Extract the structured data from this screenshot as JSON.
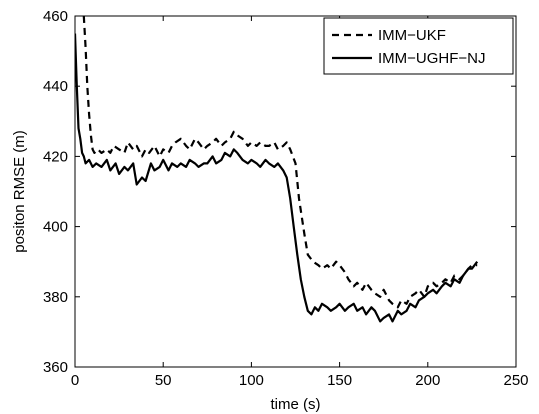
{
  "chart_data": {
    "type": "line",
    "title": "",
    "xlabel": "time (s)",
    "ylabel": "positon RMSE (m)",
    "xlim": [
      0,
      250
    ],
    "ylim": [
      360,
      460
    ],
    "xticks": [
      0,
      50,
      100,
      150,
      200,
      250
    ],
    "yticks": [
      360,
      380,
      400,
      420,
      440,
      460
    ],
    "grid": false,
    "legend_position": "top-right",
    "series": [
      {
        "name": "IMM−UKF",
        "line_style": "dashed",
        "color": "#000000",
        "x": [
          5,
          6,
          7,
          8,
          9,
          10,
          11,
          13,
          15,
          18,
          20,
          22,
          25,
          28,
          30,
          33,
          35,
          38,
          40,
          42,
          45,
          48,
          50,
          53,
          55,
          57,
          60,
          63,
          65,
          68,
          70,
          73,
          75,
          78,
          80,
          83,
          85,
          88,
          90,
          92,
          95,
          98,
          100,
          103,
          105,
          108,
          110,
          113,
          115,
          118,
          120,
          122,
          125,
          127,
          130,
          132,
          135,
          138,
          140,
          143,
          145,
          148,
          150,
          153,
          155,
          158,
          160,
          163,
          165,
          168,
          170,
          173,
          175,
          178,
          180,
          183,
          185,
          188,
          190,
          193,
          195,
          198,
          200,
          203,
          205,
          208,
          210,
          213,
          215,
          218,
          220,
          223,
          225,
          228
        ],
        "y": [
          460,
          451,
          440,
          432,
          426,
          422,
          421,
          422,
          421,
          422,
          421,
          423,
          422,
          421,
          424,
          422,
          423,
          420,
          422,
          421,
          423,
          420,
          422,
          421,
          423,
          424,
          425,
          423,
          422,
          425,
          424,
          422,
          423,
          424,
          425,
          423,
          424,
          425,
          427,
          426,
          425,
          423,
          424,
          423,
          424,
          423,
          423,
          424,
          422,
          423,
          424,
          422,
          418,
          408,
          398,
          392,
          390,
          389,
          388,
          389,
          388,
          390,
          389,
          387,
          385,
          383,
          384,
          382,
          384,
          382,
          381,
          380,
          382,
          379,
          378,
          377,
          379,
          378,
          380,
          381,
          382,
          380,
          383,
          384,
          383,
          384,
          385,
          384,
          386,
          385,
          386,
          388,
          389,
          389
        ]
      },
      {
        "name": "IMM−UGHF−NJ",
        "line_style": "solid",
        "color": "#000000",
        "x": [
          0,
          1,
          2,
          3,
          4,
          5,
          6,
          8,
          10,
          12,
          15,
          18,
          20,
          23,
          25,
          28,
          30,
          33,
          35,
          38,
          40,
          43,
          45,
          48,
          50,
          53,
          55,
          58,
          60,
          63,
          65,
          68,
          70,
          73,
          75,
          78,
          80,
          83,
          85,
          88,
          90,
          92,
          95,
          98,
          100,
          103,
          105,
          108,
          110,
          113,
          115,
          118,
          120,
          122,
          124,
          126,
          128,
          130,
          132,
          134,
          136,
          138,
          140,
          143,
          145,
          148,
          150,
          153,
          155,
          158,
          160,
          163,
          165,
          168,
          170,
          173,
          175,
          178,
          180,
          183,
          185,
          188,
          190,
          193,
          195,
          198,
          200,
          203,
          205,
          208,
          210,
          213,
          215,
          218,
          220,
          223,
          225,
          228
        ],
        "y": [
          455,
          440,
          428,
          425,
          421,
          420,
          418,
          419,
          417,
          418,
          417,
          419,
          416,
          418,
          415,
          417,
          416,
          418,
          412,
          414,
          413,
          418,
          416,
          417,
          419,
          416,
          418,
          417,
          418,
          417,
          419,
          418,
          417,
          418,
          418,
          420,
          418,
          419,
          421,
          420,
          422,
          421,
          419,
          418,
          419,
          418,
          417,
          419,
          418,
          417,
          418,
          416,
          414,
          408,
          400,
          392,
          385,
          380,
          376,
          375,
          377,
          376,
          378,
          377,
          376,
          377,
          378,
          376,
          377,
          378,
          376,
          377,
          375,
          377,
          376,
          373,
          374,
          375,
          373,
          376,
          375,
          376,
          378,
          377,
          379,
          380,
          381,
          382,
          381,
          383,
          384,
          383,
          385,
          384,
          386,
          388,
          388,
          390
        ]
      }
    ]
  }
}
